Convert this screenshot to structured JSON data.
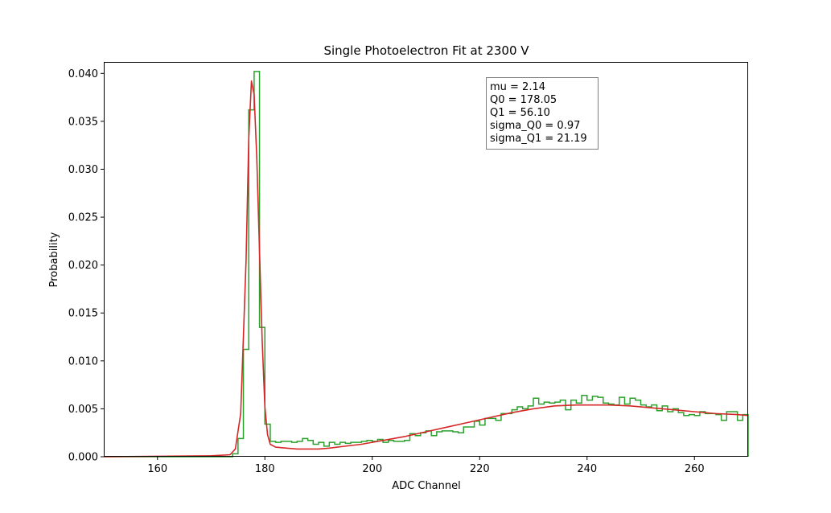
{
  "chart_data": {
    "type": "line",
    "title": "Single Photoelectron Fit at 2300 V",
    "xlabel": "ADC Channel",
    "ylabel": "Probability",
    "xlim": [
      150,
      270
    ],
    "ylim": [
      0,
      0.0412
    ],
    "x_ticks": [
      160,
      180,
      200,
      220,
      240,
      260
    ],
    "x_tick_labels": [
      "160",
      "180",
      "200",
      "220",
      "240",
      "260"
    ],
    "y_ticks": [
      0,
      0.005,
      0.01,
      0.015,
      0.02,
      0.025,
      0.03,
      0.035,
      0.04
    ],
    "y_tick_labels": [
      "0.000",
      "0.005",
      "0.010",
      "0.015",
      "0.020",
      "0.025",
      "0.030",
      "0.035",
      "0.040"
    ],
    "grid": false,
    "annotation": {
      "lines": [
        "mu = 2.14",
        "Q0 = 178.05",
        "Q1 = 56.10",
        "sigma_Q0 = 0.97",
        "sigma_Q1 = 21.19"
      ]
    },
    "series": [
      {
        "kind": "step-histogram",
        "color": "#2ca02c",
        "bin_width": 1,
        "bin_edges_start": 174,
        "values": [
          0.0003,
          0.0019,
          0.0112,
          0.0362,
          0.0402,
          0.0135,
          0.0034,
          0.0016,
          0.0015,
          0.0016,
          0.0016,
          0.0015,
          0.0016,
          0.0019,
          0.0017,
          0.0013,
          0.0015,
          0.0011,
          0.0015,
          0.0013,
          0.0015,
          0.0014,
          0.0015,
          0.0015,
          0.0016,
          0.0017,
          0.0016,
          0.0018,
          0.0015,
          0.0017,
          0.0016,
          0.0016,
          0.0017,
          0.0024,
          0.0022,
          0.0025,
          0.0027,
          0.0022,
          0.0026,
          0.0027,
          0.0027,
          0.0026,
          0.0025,
          0.0031,
          0.0031,
          0.0037,
          0.0033,
          0.004,
          0.004,
          0.0038,
          0.0045,
          0.0045,
          0.0049,
          0.0052,
          0.005,
          0.0053,
          0.0061,
          0.0055,
          0.0057,
          0.0056,
          0.0057,
          0.0059,
          0.0049,
          0.0059,
          0.0056,
          0.0064,
          0.0059,
          0.0063,
          0.0062,
          0.0056,
          0.0055,
          0.0054,
          0.0062,
          0.0055,
          0.0061,
          0.0059,
          0.0054,
          0.0052,
          0.0054,
          0.0048,
          0.0053,
          0.0047,
          0.005,
          0.0046,
          0.0043,
          0.0044,
          0.0043,
          0.0047,
          0.0045,
          0.0045,
          0.0044,
          0.0038,
          0.0047,
          0.0047,
          0.0038,
          0.0044,
          0.0036
        ]
      },
      {
        "kind": "fit-curve",
        "color": "#d62728",
        "x": [
          150,
          170,
          173.5,
          174.5,
          175.5,
          176.5,
          177.0,
          177.5,
          178.0,
          178.5,
          179.0,
          179.5,
          180.0,
          180.5,
          181.0,
          182,
          184,
          186,
          188,
          190,
          192,
          195,
          198,
          200,
          203,
          206,
          210,
          214,
          218,
          222,
          226,
          230,
          234,
          238,
          240,
          244,
          248,
          252,
          256,
          260,
          264,
          268,
          270
        ],
        "y": [
          0.0,
          0.0001,
          0.0002,
          0.0008,
          0.0045,
          0.0205,
          0.0332,
          0.0392,
          0.0378,
          0.0311,
          0.0215,
          0.0121,
          0.0052,
          0.0023,
          0.0013,
          0.001,
          0.0009,
          0.0008,
          0.0008,
          0.0008,
          0.0009,
          0.0011,
          0.0013,
          0.0015,
          0.0018,
          0.0021,
          0.0026,
          0.0031,
          0.0036,
          0.0041,
          0.0046,
          0.005,
          0.0053,
          0.0054,
          0.0054,
          0.0054,
          0.0053,
          0.0051,
          0.0049,
          0.0047,
          0.0045,
          0.0044,
          0.0043
        ]
      }
    ]
  }
}
